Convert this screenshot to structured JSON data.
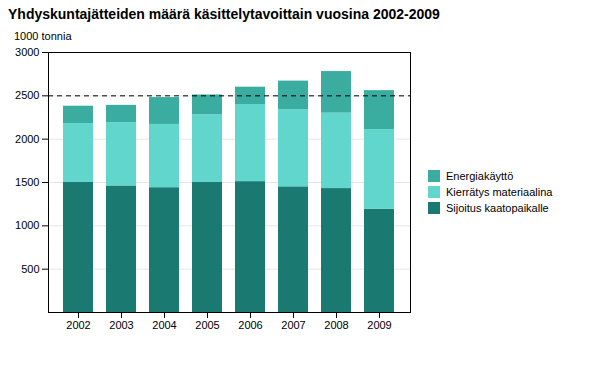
{
  "chart_data": {
    "type": "bar",
    "title": "Yhdyskuntajätteiden määrä käsittelytavoittain vuosina 2002-2009",
    "y_label": "1000 tonnia",
    "categories": [
      "2002",
      "2003",
      "2004",
      "2005",
      "2006",
      "2007",
      "2008",
      "2009"
    ],
    "series": [
      {
        "name": "Sijoitus kaatopaikalle",
        "color": "#1a7a72",
        "values": [
          1500,
          1460,
          1440,
          1500,
          1510,
          1450,
          1430,
          1190
        ]
      },
      {
        "name": "Kierrätys materiaalina",
        "color": "#60d6cc",
        "values": [
          680,
          730,
          730,
          780,
          890,
          890,
          870,
          920
        ]
      },
      {
        "name": "Energiakäyttö",
        "color": "#3aada0",
        "values": [
          200,
          200,
          310,
          230,
          200,
          330,
          480,
          450
        ]
      }
    ],
    "stacked": true,
    "ylim": [
      0,
      3000
    ],
    "yticks": [
      500,
      1000,
      1500,
      2000,
      2500,
      3000
    ],
    "grid": true,
    "legend": "right",
    "hline": {
      "y": 2500,
      "line_style": "dashed",
      "color": "#000000"
    }
  }
}
